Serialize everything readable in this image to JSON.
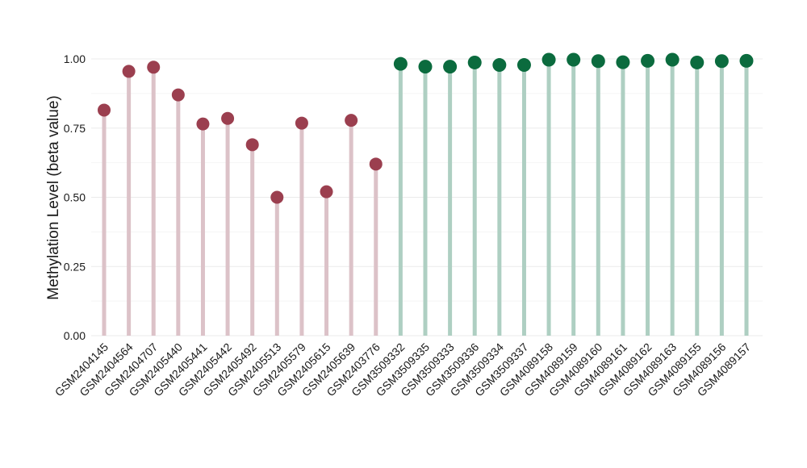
{
  "chart_data": {
    "type": "lollipop",
    "title": "",
    "xlabel": "",
    "ylabel": "Methylation Level (beta value)",
    "ylim": [
      0,
      1
    ],
    "yticks": [
      0.0,
      0.25,
      0.5,
      0.75,
      1.0
    ],
    "ytick_labels": [
      "0.00",
      "0.25",
      "0.50",
      "0.75",
      "1.00"
    ],
    "grid": true,
    "legend": "none",
    "groups": [
      {
        "stem_color": "#dcc2c8",
        "point_color": "#9b3f4f"
      },
      {
        "stem_color": "#aecfc2",
        "point_color": "#0b6b3e"
      }
    ],
    "points": [
      {
        "sample": "GSM2404145",
        "value": 0.815,
        "group": 0
      },
      {
        "sample": "GSM2404564",
        "value": 0.955,
        "group": 0
      },
      {
        "sample": "GSM2404707",
        "value": 0.97,
        "group": 0
      },
      {
        "sample": "GSM2405440",
        "value": 0.87,
        "group": 0
      },
      {
        "sample": "GSM2405441",
        "value": 0.765,
        "group": 0
      },
      {
        "sample": "GSM2405442",
        "value": 0.785,
        "group": 0
      },
      {
        "sample": "GSM2405492",
        "value": 0.69,
        "group": 0
      },
      {
        "sample": "GSM2405513",
        "value": 0.5,
        "group": 0
      },
      {
        "sample": "GSM2405579",
        "value": 0.768,
        "group": 0
      },
      {
        "sample": "GSM2405615",
        "value": 0.52,
        "group": 0
      },
      {
        "sample": "GSM2405639",
        "value": 0.778,
        "group": 0
      },
      {
        "sample": "GSM2403776",
        "value": 0.62,
        "group": 0
      },
      {
        "sample": "GSM3509332",
        "value": 0.982,
        "group": 1
      },
      {
        "sample": "GSM3509335",
        "value": 0.972,
        "group": 1
      },
      {
        "sample": "GSM3509333",
        "value": 0.972,
        "group": 1
      },
      {
        "sample": "GSM3509336",
        "value": 0.987,
        "group": 1
      },
      {
        "sample": "GSM3509334",
        "value": 0.978,
        "group": 1
      },
      {
        "sample": "GSM3509337",
        "value": 0.978,
        "group": 1
      },
      {
        "sample": "GSM4089158",
        "value": 0.997,
        "group": 1
      },
      {
        "sample": "GSM4089159",
        "value": 0.997,
        "group": 1
      },
      {
        "sample": "GSM4089160",
        "value": 0.992,
        "group": 1
      },
      {
        "sample": "GSM4089161",
        "value": 0.988,
        "group": 1
      },
      {
        "sample": "GSM4089162",
        "value": 0.993,
        "group": 1
      },
      {
        "sample": "GSM4089163",
        "value": 0.997,
        "group": 1
      },
      {
        "sample": "GSM4089155",
        "value": 0.987,
        "group": 1
      },
      {
        "sample": "GSM4089156",
        "value": 0.992,
        "group": 1
      },
      {
        "sample": "GSM4089157",
        "value": 0.993,
        "group": 1
      }
    ]
  }
}
